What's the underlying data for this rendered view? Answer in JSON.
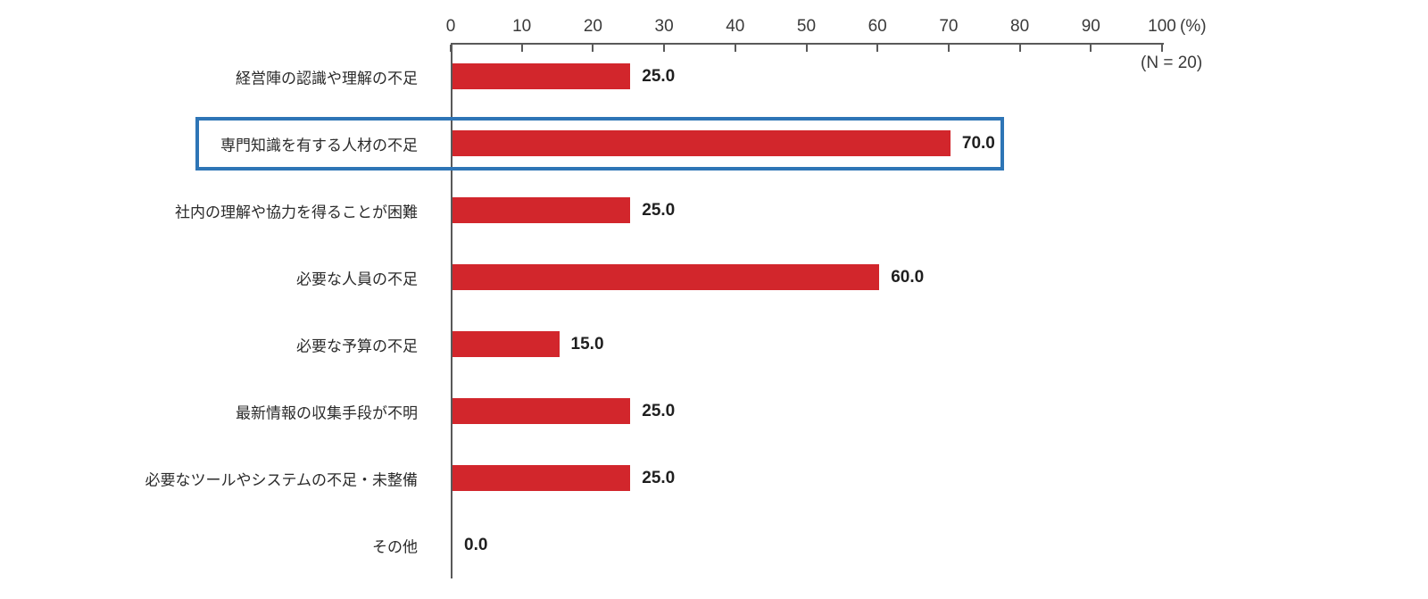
{
  "chart_data": {
    "type": "bar",
    "orientation": "horizontal",
    "title": "",
    "categories": [
      "経営陣の認識や理解の不足",
      "専門知識を有する人材の不足",
      "社内の理解や協力を得ることが困難",
      "必要な人員の不足",
      "必要な予算の不足",
      "最新情報の収集手段が不明",
      "必要なツールやシステムの不足・未整備",
      "その他"
    ],
    "values": [
      25.0,
      70.0,
      25.0,
      60.0,
      15.0,
      25.0,
      25.0,
      0.0
    ],
    "value_labels": [
      "25.0",
      "70.0",
      "25.0",
      "60.0",
      "15.0",
      "25.0",
      "25.0",
      "0.0"
    ],
    "xlim": [
      0,
      100
    ],
    "x_ticks": [
      0,
      10,
      20,
      30,
      40,
      50,
      60,
      70,
      80,
      90,
      100
    ],
    "x_unit_label": "(%)",
    "sample_size_label": "(N = 20)",
    "highlight": {
      "category": "専門知識を有する人材の不足",
      "index": 1
    },
    "colors": {
      "bar": "#d2262c",
      "highlight_border": "#2e75b6",
      "axis": "#595959",
      "category_text": "#2b2b2b",
      "value_text": "#1f1f1f",
      "tick_text": "#3a3a3a"
    },
    "grid": false,
    "legend": false
  }
}
